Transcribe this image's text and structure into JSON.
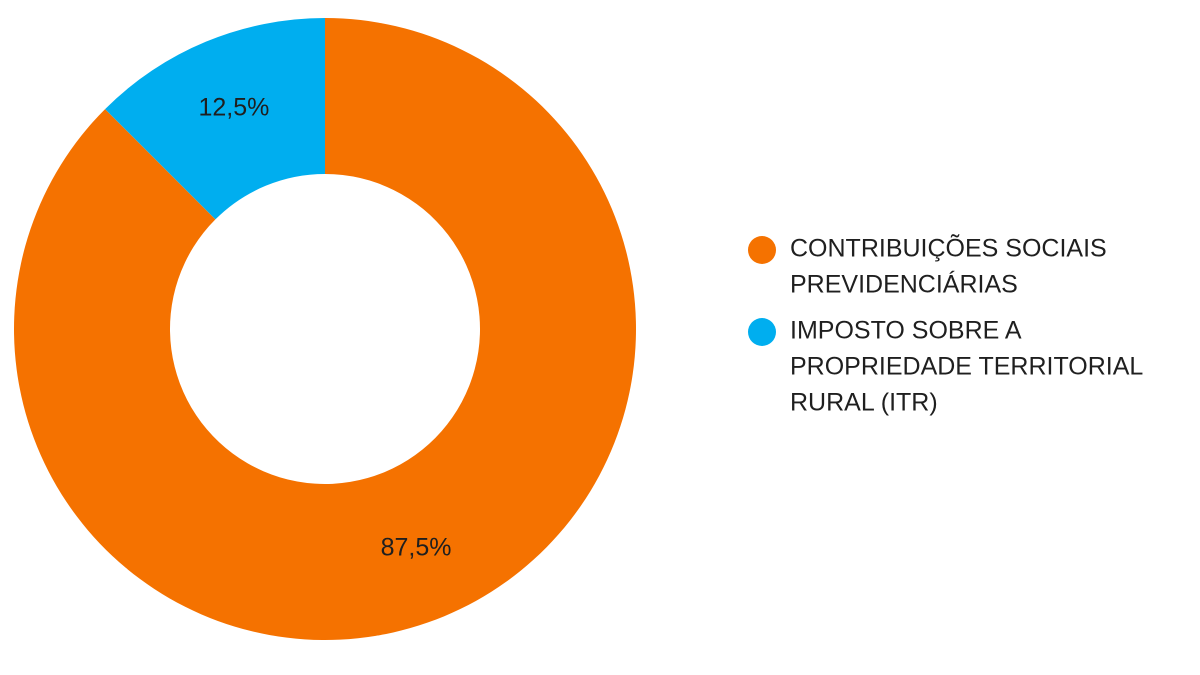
{
  "chart_data": {
    "type": "pie",
    "donut": true,
    "categories": [
      "CONTRIBUIÇÕES SOCIAIS PREVIDENCIÁRIAS",
      "IMPOSTO SOBRE A PROPRIEDADE TERRITORIAL RURAL (ITR)"
    ],
    "values": [
      87.5,
      12.5
    ],
    "data_labels": [
      "87,5%",
      "12,5%"
    ],
    "legend_lines": [
      [
        "CONTRIBUIÇÕES SOCIAIS",
        "PREVIDENCIÁRIAS"
      ],
      [
        "IMPOSTO SOBRE A",
        "PROPRIEDADE TERRITORIAL",
        "RURAL (ITR)"
      ]
    ],
    "colors": [
      "#F57200",
      "#00AEEF"
    ],
    "legend_position": "right",
    "title": ""
  }
}
